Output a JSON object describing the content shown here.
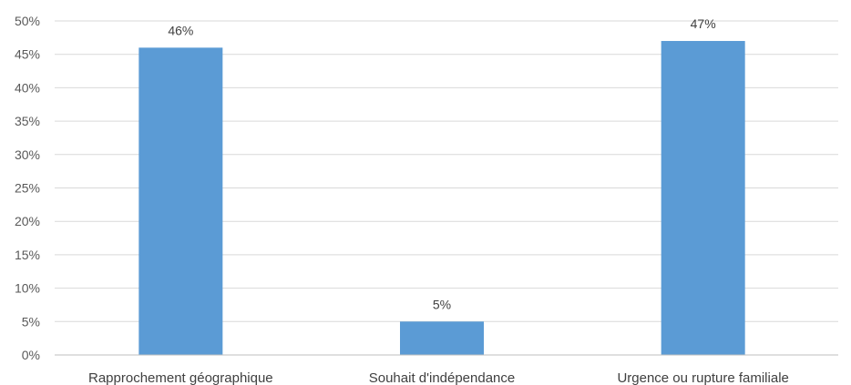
{
  "chart_data": {
    "type": "bar",
    "categories": [
      "Rapprochement géographique",
      "Souhait d'indépendance",
      "Urgence ou rupture familiale"
    ],
    "values": [
      46,
      5,
      47
    ],
    "data_labels": [
      "46%",
      "5%",
      "47%"
    ],
    "y_ticks": [
      "0%",
      "5%",
      "10%",
      "15%",
      "20%",
      "25%",
      "30%",
      "35%",
      "40%",
      "45%",
      "50%"
    ],
    "ylim": [
      0,
      50
    ],
    "unit": "%",
    "grid": true,
    "legend": "none",
    "bar_color": "#5b9bd5"
  }
}
